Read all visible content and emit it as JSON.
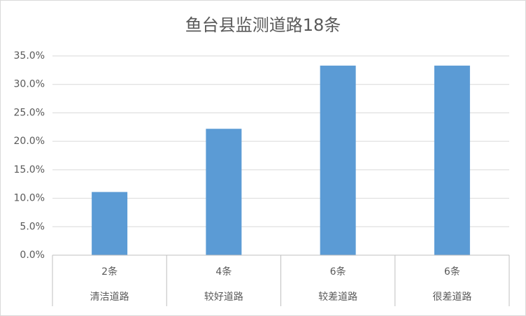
{
  "chart_data": {
    "type": "bar",
    "title": "鱼台县监测道路18条",
    "categories": [
      "清洁道路",
      "较好道路",
      "较差道路",
      "很差道路"
    ],
    "category_counts": [
      "2条",
      "4条",
      "6条",
      "6条"
    ],
    "values": [
      11.1,
      22.2,
      33.3,
      33.3
    ],
    "color": "#5b9bd5",
    "ylim": [
      0,
      35
    ],
    "yticks": [
      {
        "value": 0,
        "label": "0.0%"
      },
      {
        "value": 5,
        "label": "5.0%"
      },
      {
        "value": 10,
        "label": "10.0%"
      },
      {
        "value": 15,
        "label": "15.0%"
      },
      {
        "value": 20,
        "label": "20.0%"
      },
      {
        "value": 25,
        "label": "25.0%"
      },
      {
        "value": 30,
        "label": "30.0%"
      },
      {
        "value": 35,
        "label": "35.0%"
      }
    ],
    "grid": true
  }
}
